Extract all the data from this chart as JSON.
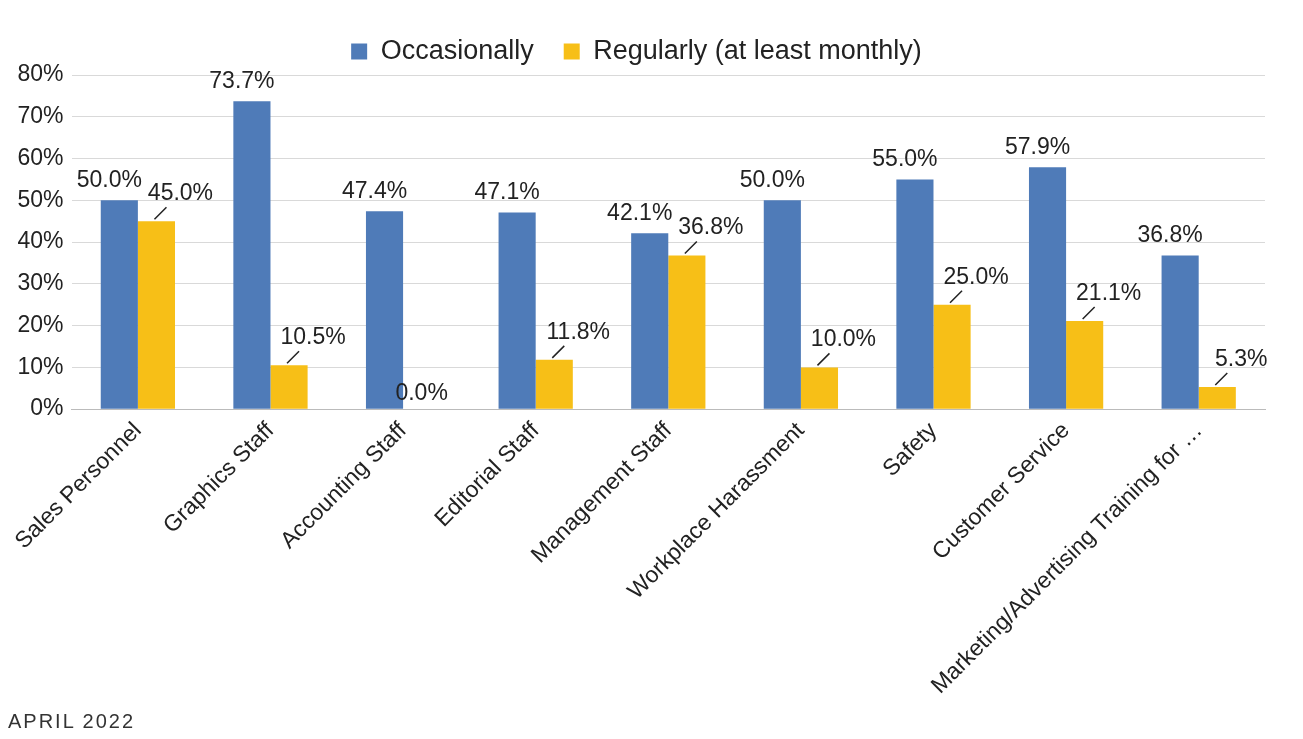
{
  "chart_data": {
    "type": "bar",
    "categories": [
      "Sales Personnel",
      "Graphics Staff",
      "Accounting Staff",
      "Editorial Staff",
      "Management Staff",
      "Workplace Harassment",
      "Safety",
      "Customer Service",
      "Marketing/Advertising Training for …"
    ],
    "series": [
      {
        "name": "Occasionally",
        "color": "#4f7bb8",
        "values": [
          50.0,
          73.7,
          47.4,
          47.1,
          42.1,
          50.0,
          55.0,
          57.9,
          36.8
        ],
        "value_labels": [
          "50.0%",
          "73.7%",
          "47.4%",
          "47.1%",
          "42.1%",
          "50.0%",
          "55.0%",
          "57.9%",
          "36.8%"
        ]
      },
      {
        "name": "Regularly (at least monthly)",
        "color": "#f7bf17",
        "values": [
          45.0,
          10.5,
          0.0,
          11.8,
          36.8,
          10.0,
          25.0,
          21.1,
          5.3
        ],
        "value_labels": [
          "45.0%",
          "10.5%",
          "0.0%",
          "11.8%",
          "36.8%",
          "10.0%",
          "25.0%",
          "21.1%",
          "5.3%"
        ]
      }
    ],
    "ylim": [
      0,
      80
    ],
    "yticks": [
      {
        "value": 0,
        "label": "0%"
      },
      {
        "value": 10,
        "label": "10%"
      },
      {
        "value": 20,
        "label": "20%"
      },
      {
        "value": 30,
        "label": "30%"
      },
      {
        "value": 40,
        "label": "40%"
      },
      {
        "value": 50,
        "label": "50%"
      },
      {
        "value": 60,
        "label": "60%"
      },
      {
        "value": 70,
        "label": "70%"
      },
      {
        "value": 80,
        "label": "80%"
      }
    ],
    "grid": "y",
    "legend": "top",
    "annotations": [
      "APRIL 2022"
    ]
  }
}
